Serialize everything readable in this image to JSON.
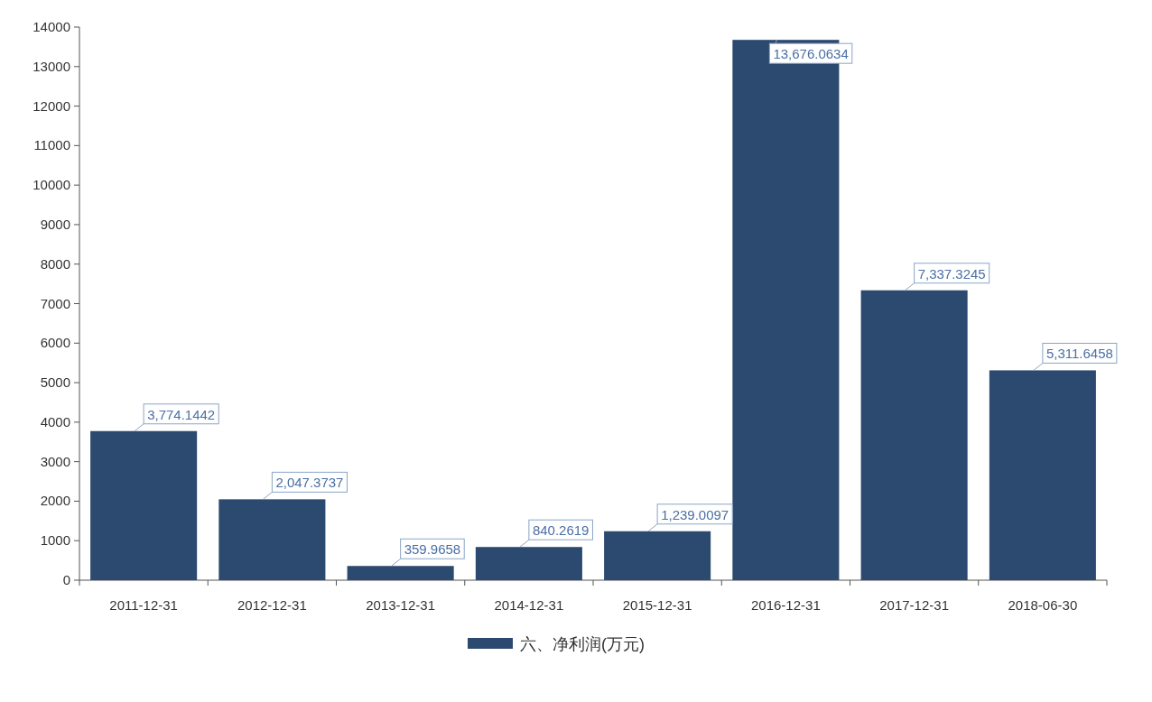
{
  "chart_data": {
    "type": "bar",
    "categories": [
      "2011-12-31",
      "2012-12-31",
      "2013-12-31",
      "2014-12-31",
      "2015-12-31",
      "2016-12-31",
      "2017-12-31",
      "2018-06-30"
    ],
    "series": [
      {
        "name": "六、净利润(万元)",
        "color": "#2c4a70",
        "values": [
          3774.1442,
          2047.3737,
          359.9658,
          840.2619,
          1239.0097,
          13676.0634,
          7337.3245,
          5311.6458
        ],
        "value_labels": [
          "3,774.1442",
          "2,047.3737",
          "359.9658",
          "840.2619",
          "1,239.0097",
          "13,676.0634",
          "7,337.3245",
          "5,311.6458"
        ]
      }
    ],
    "ylim": [
      0,
      14000
    ],
    "yticks": [
      0,
      1000,
      2000,
      3000,
      4000,
      5000,
      6000,
      7000,
      8000,
      9000,
      10000,
      11000,
      12000,
      13000,
      14000
    ],
    "legend": "bottom",
    "grid": false
  }
}
